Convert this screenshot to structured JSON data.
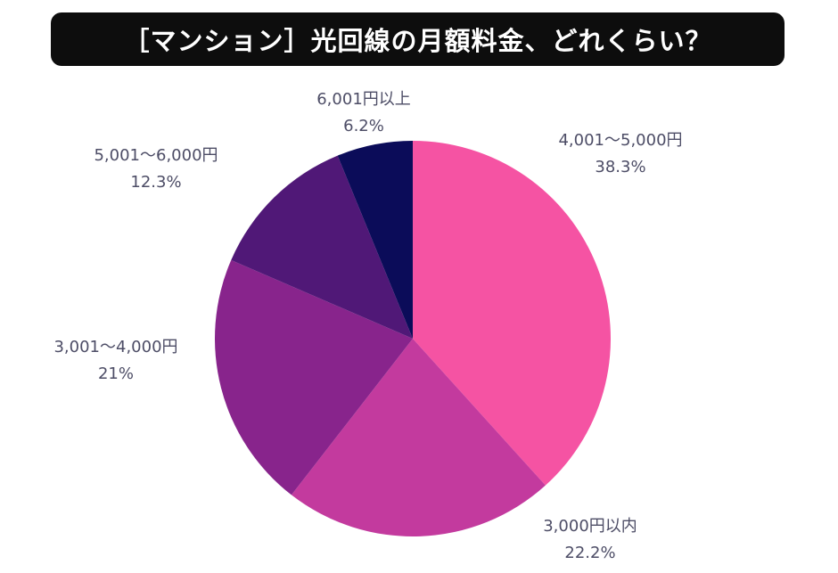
{
  "title": "［マンション］光回線の月額料金、どれくらい？",
  "chart_data": {
    "type": "pie",
    "title": "［マンション］光回線の月額料金、どれくらい？",
    "start": "12 o'clock, clockwise",
    "slices": [
      {
        "label": "4,001〜5,000円",
        "value": 38.3,
        "value_label": "38.3%",
        "color": "#f553a3"
      },
      {
        "label": "3,000円以内",
        "value": 22.2,
        "value_label": "22.2%",
        "color": "#c33a9e"
      },
      {
        "label": "3,001〜4,000円",
        "value": 21,
        "value_label": "21%",
        "color": "#88248c"
      },
      {
        "label": "5,001〜6,000円",
        "value": 12.3,
        "value_label": "12.3%",
        "color": "#501877"
      },
      {
        "label": "6,001円以上",
        "value": 6.2,
        "value_label": "6.2%",
        "color": "#0b0c59"
      }
    ]
  }
}
